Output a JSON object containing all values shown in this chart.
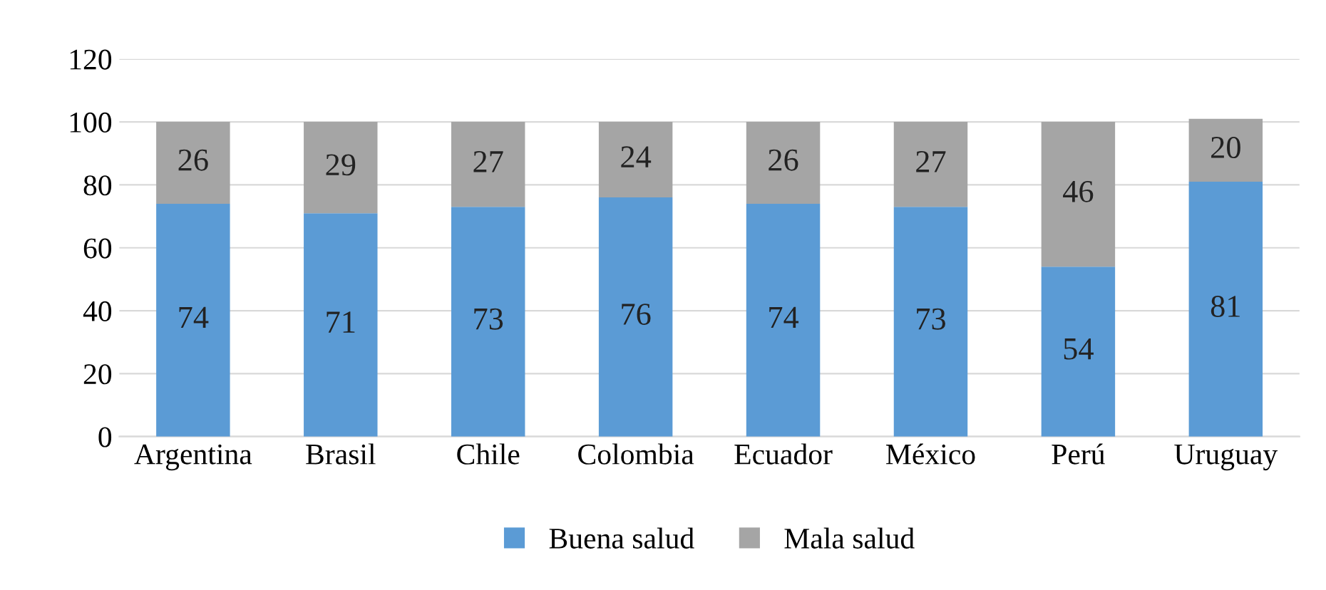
{
  "chart_data": {
    "type": "bar",
    "stacked": true,
    "categories": [
      "Argentina",
      "Brasil",
      "Chile",
      "Colombia",
      "Ecuador",
      "México",
      "Perú",
      "Uruguay"
    ],
    "series": [
      {
        "name": "Buena salud",
        "color": "#5b9bd5",
        "values": [
          74,
          71,
          73,
          76,
          74,
          73,
          54,
          81
        ]
      },
      {
        "name": "Mala salud",
        "color": "#a5a5a5",
        "values": [
          26,
          29,
          27,
          24,
          26,
          27,
          46,
          20
        ]
      }
    ],
    "ylim": [
      0,
      120
    ],
    "yticks": [
      0,
      20,
      40,
      60,
      80,
      100,
      120
    ],
    "grid": "y",
    "legend": "bottom",
    "data_labels": true
  }
}
